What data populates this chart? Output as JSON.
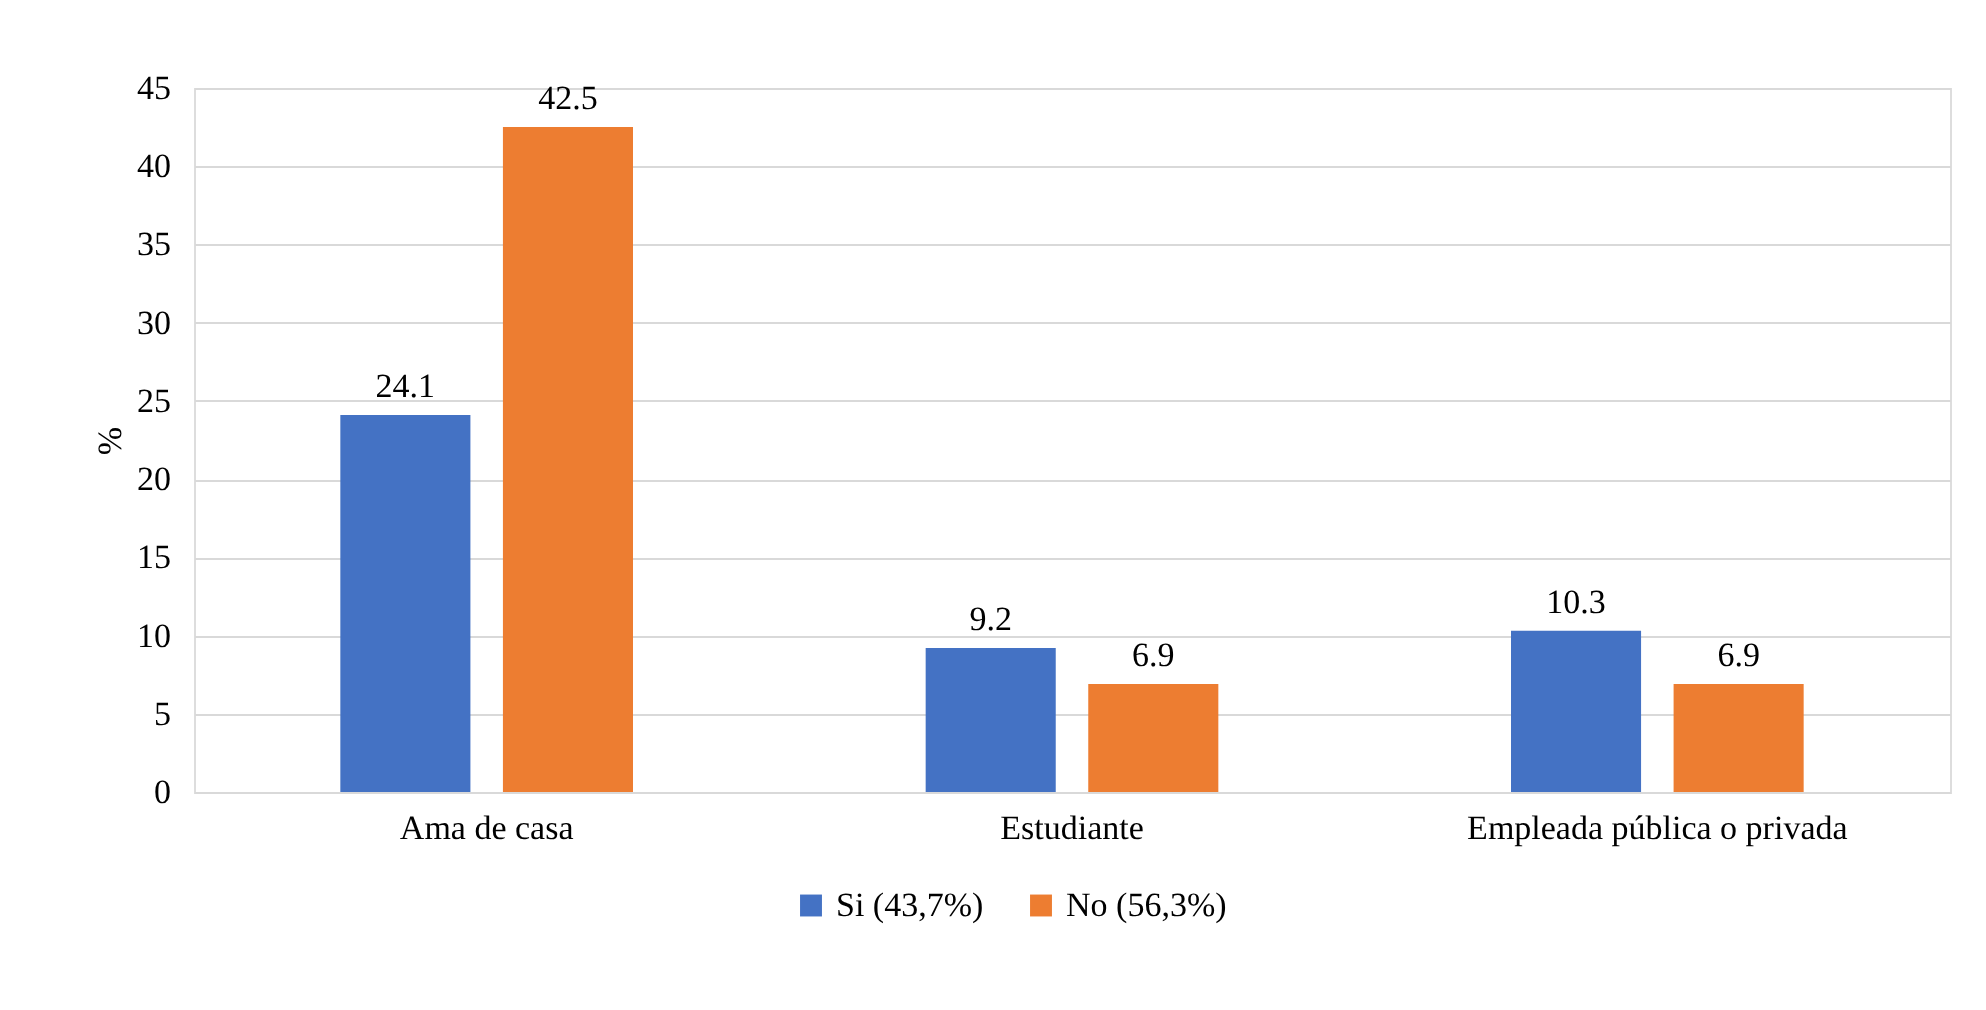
{
  "chart_data": {
    "type": "bar",
    "ylabel": "%",
    "categories": [
      "Ama de casa",
      "Estudiante",
      "Empleada pública o privada"
    ],
    "series": [
      {
        "name": "Si (43,7%)",
        "color": "#4472c4",
        "values": [
          24.1,
          9.2,
          10.3
        ]
      },
      {
        "name": "No (56,3%)",
        "color": "#ed7d31",
        "values": [
          42.5,
          6.9,
          6.9
        ]
      }
    ],
    "ylim": [
      0,
      45
    ],
    "yticks": [
      0,
      5,
      10,
      15,
      20,
      25,
      30,
      35,
      40,
      45
    ],
    "grid": "y",
    "legend": "bottom",
    "data_labels": true
  }
}
